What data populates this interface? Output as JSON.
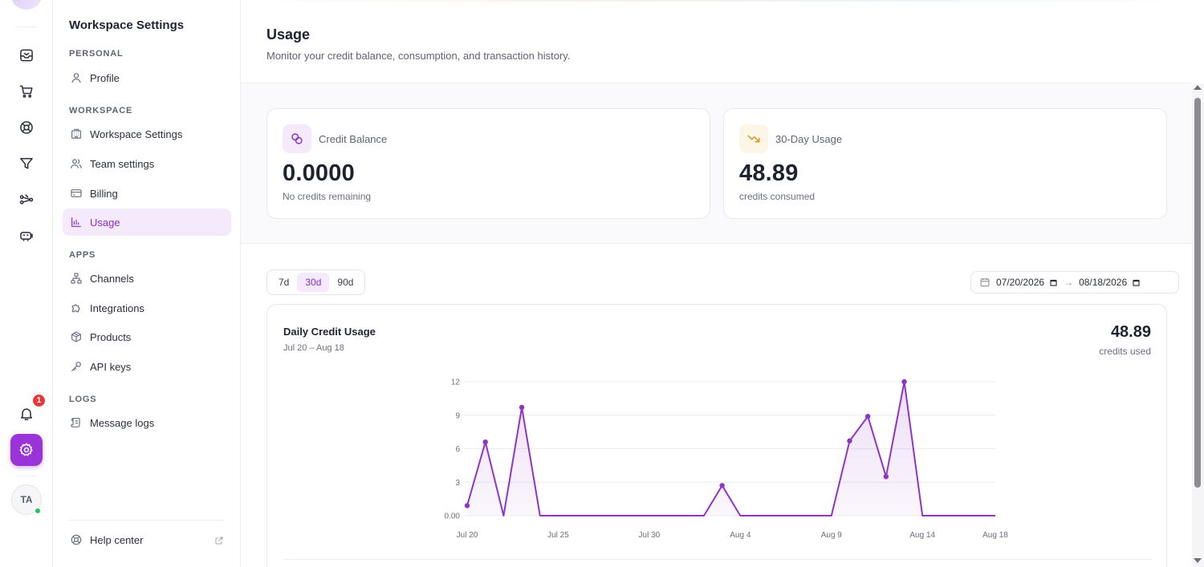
{
  "sidebar": {
    "title": "Workspace Settings",
    "sections": {
      "personal": "PERSONAL",
      "workspace": "WORKSPACE",
      "apps": "APPS",
      "logs": "LOGS"
    },
    "items": {
      "profile": "Profile",
      "workspace_settings": "Workspace Settings",
      "team_settings": "Team settings",
      "billing": "Billing",
      "usage": "Usage",
      "channels": "Channels",
      "integrations": "Integrations",
      "products": "Products",
      "api_keys": "API keys",
      "message_logs": "Message logs"
    },
    "help": "Help center"
  },
  "rail": {
    "notification_count": "1",
    "avatar_initials": "TA"
  },
  "page": {
    "title": "Usage",
    "subtitle": "Monitor your credit balance, consumption, and transaction history."
  },
  "cards": {
    "balance": {
      "label": "Credit Balance",
      "value": "0.0000",
      "caption": "No credits remaining"
    },
    "usage30": {
      "label": "30-Day Usage",
      "value": "48.89",
      "caption": "credits consumed"
    }
  },
  "range": {
    "options": [
      "7d",
      "30d",
      "90d"
    ],
    "selected": "30d"
  },
  "dates": {
    "from": "07/20/2026",
    "arrow": "→",
    "to": "08/18/2026"
  },
  "chart": {
    "title": "Daily Credit Usage",
    "subtitle": "Jul 20 – Aug 18",
    "total": "48.89",
    "total_label": "credits used"
  },
  "colors": {
    "accent": "#9b34d8",
    "accent_soft": "#f4eafc",
    "line": "#8e35c9"
  },
  "chart_data": {
    "type": "area",
    "title": "",
    "xlabel": "",
    "ylabel": "",
    "x_ticks": [
      "Jul 20",
      "Jul 25",
      "Jul 30",
      "Aug 4",
      "Aug 9",
      "Aug 14",
      "Aug 18"
    ],
    "y_ticks": [
      "0.00",
      "3",
      "6",
      "9",
      "12"
    ],
    "ylim": [
      0,
      12
    ],
    "grid": true,
    "series": [
      {
        "values": [
          0.9,
          6.6,
          0,
          9.7,
          0,
          0,
          0,
          0,
          0,
          0,
          0,
          0,
          0,
          0,
          2.7,
          0,
          0,
          0,
          0,
          0,
          0,
          6.7,
          8.9,
          3.5,
          12.0,
          0,
          0,
          0,
          0,
          0
        ]
      }
    ]
  }
}
